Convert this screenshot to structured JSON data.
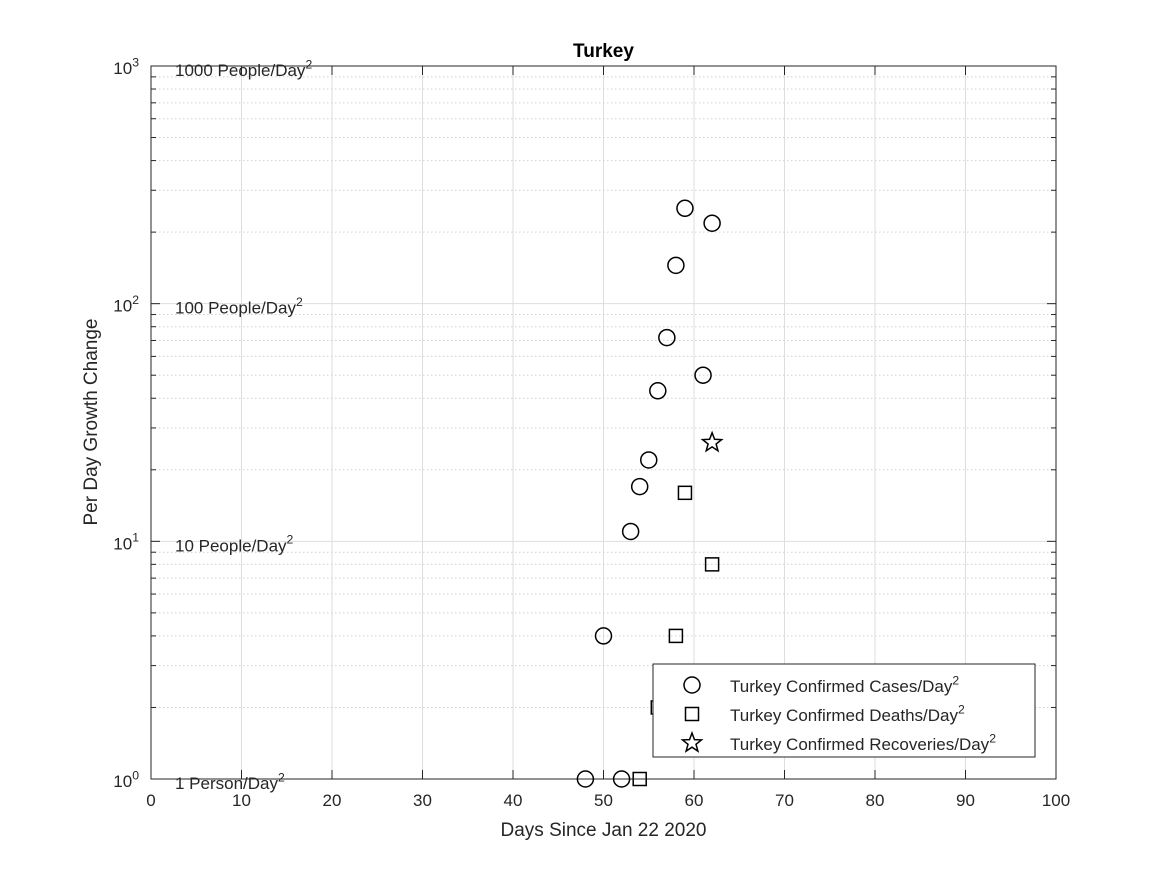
{
  "chart_data": {
    "type": "scatter",
    "title": "Turkey",
    "xlabel": "Days Since Jan 22 2020",
    "ylabel": "Per Day Growth Change",
    "xlim": [
      0,
      100
    ],
    "ylim": [
      1,
      1000
    ],
    "yscale": "log",
    "grid": true,
    "legend_position": "bottom-right",
    "x_ticks": [
      0,
      10,
      20,
      30,
      40,
      50,
      60,
      70,
      80,
      90,
      100
    ],
    "y_ticks": [
      {
        "value": 1,
        "base": "10",
        "exp": "0"
      },
      {
        "value": 10,
        "base": "10",
        "exp": "1"
      },
      {
        "value": 100,
        "base": "10",
        "exp": "2"
      },
      {
        "value": 1000,
        "base": "10",
        "exp": "3"
      }
    ],
    "reference_labels": [
      {
        "value": 1000,
        "text": "1000 People/Day",
        "sup": "2"
      },
      {
        "value": 100,
        "text": "100 People/Day",
        "sup": "2"
      },
      {
        "value": 10,
        "text": "10 People/Day",
        "sup": "2"
      },
      {
        "value": 1,
        "text": "1 Person/Day",
        "sup": "2"
      }
    ],
    "series": [
      {
        "name": "Turkey Confirmed Cases/Day",
        "name_sup": "2",
        "marker": "circle",
        "color": "#000000",
        "points": [
          {
            "x": 48,
            "y": 1
          },
          {
            "x": 50,
            "y": 4
          },
          {
            "x": 52,
            "y": 1
          },
          {
            "x": 53,
            "y": 11
          },
          {
            "x": 54,
            "y": 17
          },
          {
            "x": 55,
            "y": 22
          },
          {
            "x": 56,
            "y": 43
          },
          {
            "x": 57,
            "y": 72
          },
          {
            "x": 58,
            "y": 145
          },
          {
            "x": 59,
            "y": 252
          },
          {
            "x": 61,
            "y": 50
          },
          {
            "x": 62,
            "y": 218
          }
        ]
      },
      {
        "name": "Turkey Confirmed Deaths/Day",
        "name_sup": "2",
        "marker": "square",
        "color": "#000000",
        "points": [
          {
            "x": 54,
            "y": 1
          },
          {
            "x": 56,
            "y": 2
          },
          {
            "x": 58,
            "y": 4
          },
          {
            "x": 59,
            "y": 16
          },
          {
            "x": 62,
            "y": 8
          }
        ]
      },
      {
        "name": "Turkey Confirmed Recoveries/Day",
        "name_sup": "2",
        "marker": "star",
        "color": "#000000",
        "points": [
          {
            "x": 62,
            "y": 26
          }
        ]
      }
    ]
  }
}
